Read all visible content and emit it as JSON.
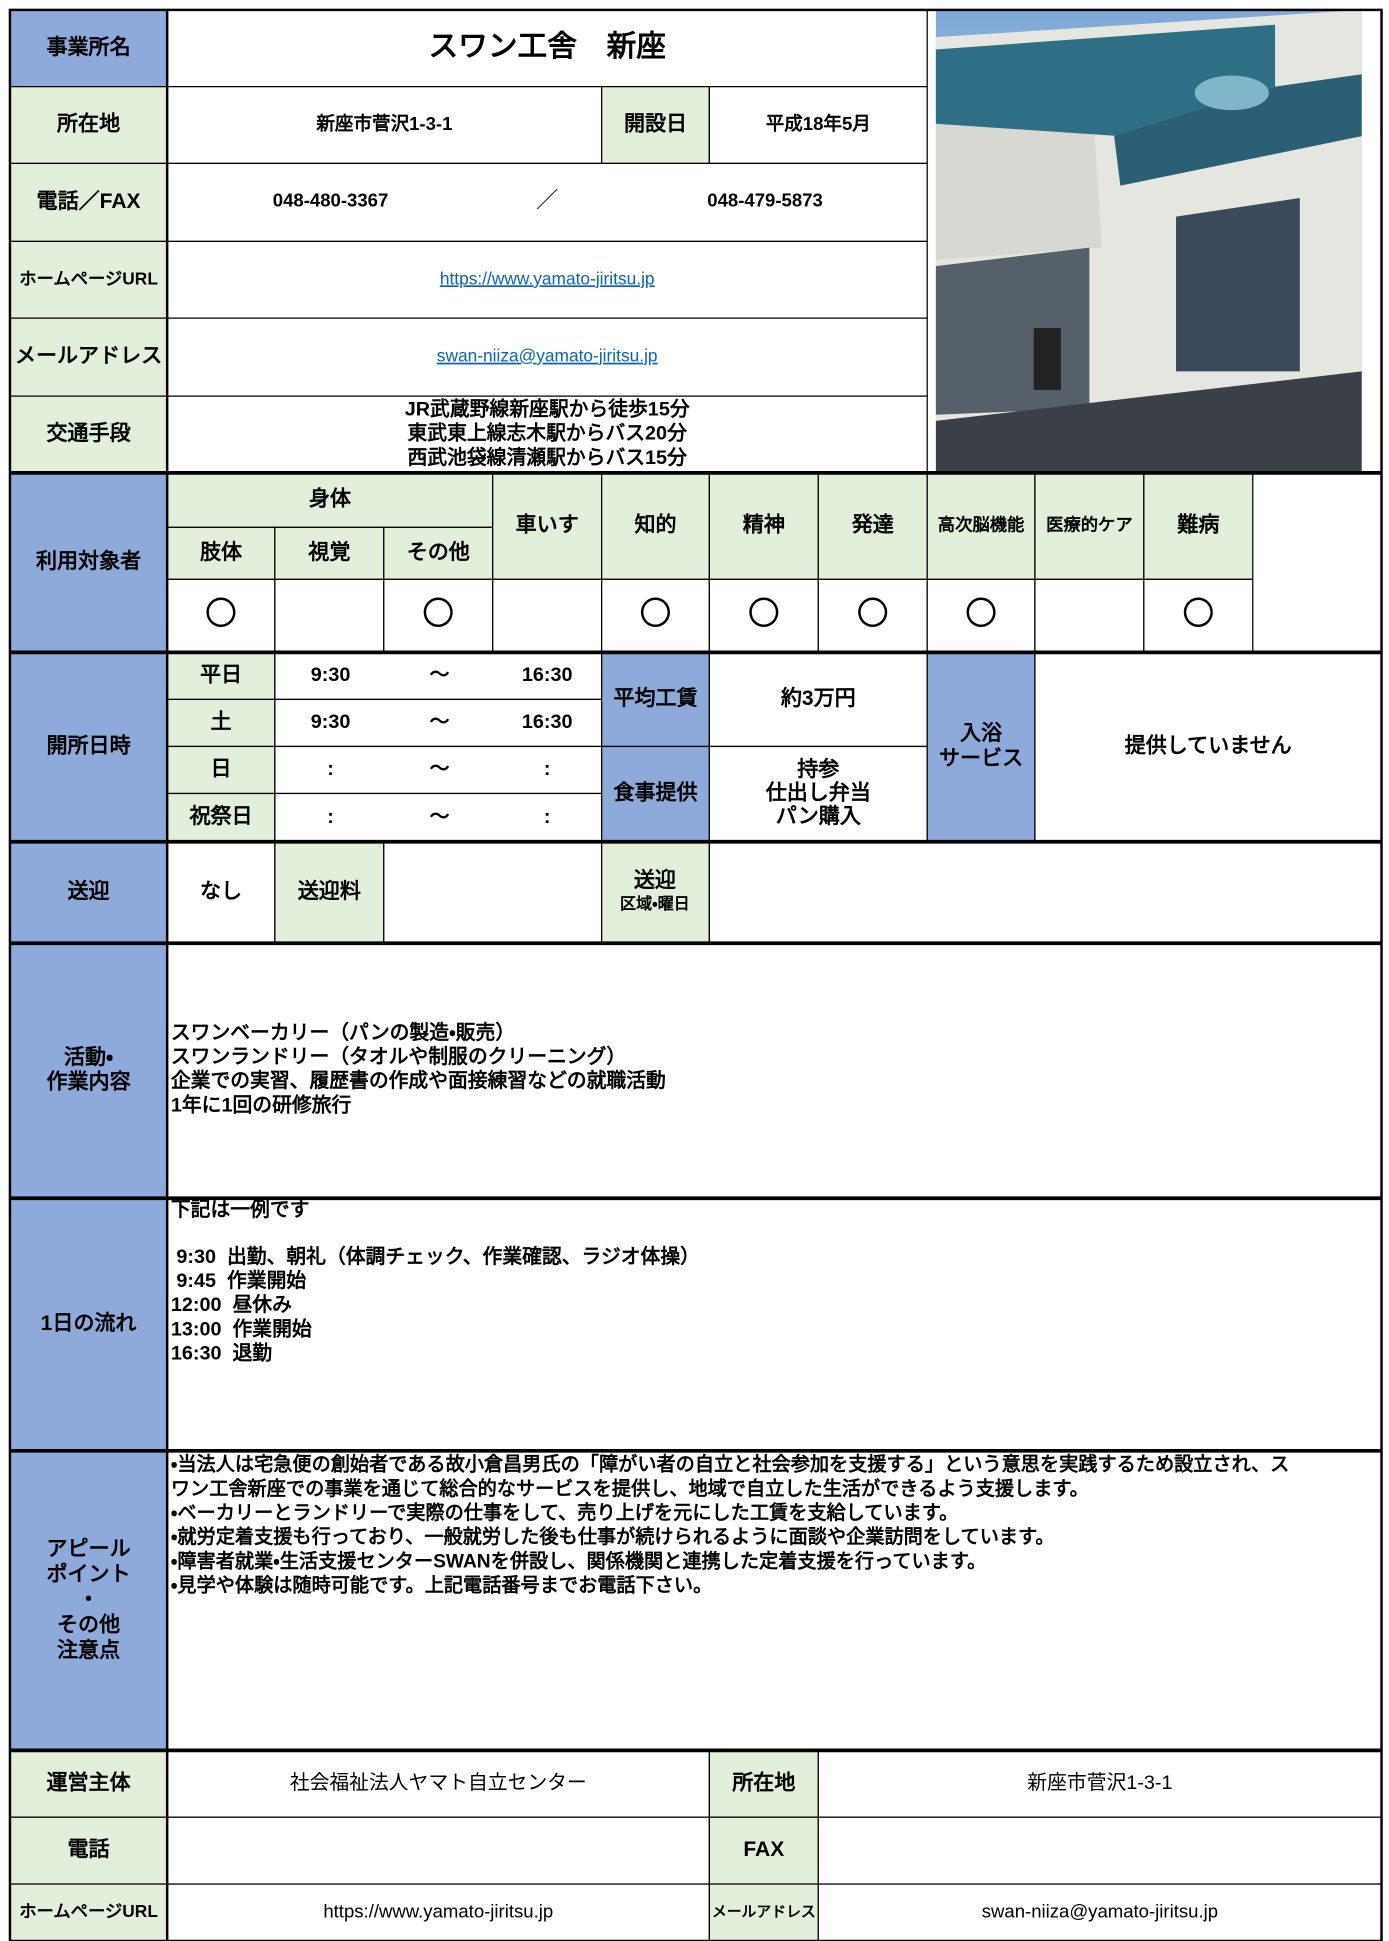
{
  "header": {
    "office_label": "事業所名",
    "office_name": "スワン工舎　新座"
  },
  "info": {
    "address_label": "所在地",
    "address": "新座市菅沢1-3-1",
    "opened_label": "開設日",
    "opened": "平成18年5月",
    "phone_label": "電話／FAX",
    "phone": "048-480-3367",
    "separator": "／",
    "fax": "048-479-5873",
    "url_label": "ホームページURL",
    "url": "https://www.yamato-jiritsu.jp",
    "email_label": "メールアドレス",
    "email": "swan-niiza@yamato-jiritsu.jp",
    "access_label": "交通手段",
    "access": [
      "JR武蔵野線新座駅から徒歩15分",
      "東武東上線志木駅からバス20分",
      "西武池袋線清瀬駅からバス15分"
    ]
  },
  "targets": {
    "label": "利用対象者",
    "body_group": "身体",
    "columns": [
      {
        "name": "肢体",
        "mark": "〇"
      },
      {
        "name": "視覚"
      },
      {
        "name": "その他",
        "mark": "〇"
      },
      {
        "name": "車いす"
      },
      {
        "name": "知的",
        "mark": "〇"
      },
      {
        "name": "精神",
        "mark": "〇"
      },
      {
        "name": "発達",
        "mark": "〇"
      },
      {
        "name": "高次脳機能",
        "mark": "〇"
      },
      {
        "name": "医療的ケア"
      },
      {
        "name": "難病",
        "mark": "〇"
      }
    ]
  },
  "hours": {
    "label": "開所日時",
    "rows": [
      {
        "day": "平日",
        "open": "9:30",
        "tilde": "～",
        "close": "16:30"
      },
      {
        "day": "土",
        "open": "9:30",
        "tilde": "～",
        "close": "16:30"
      },
      {
        "day": "日",
        "open": ":",
        "tilde": "～",
        "close": ":"
      },
      {
        "day": "祝祭日",
        "open": ":",
        "tilde": "～",
        "close": ":"
      }
    ]
  },
  "wage": {
    "label": "平均工賃",
    "value": "約3万円"
  },
  "meals": {
    "label": "食事提供",
    "value": [
      "持参",
      "仕出し弁当",
      "パン購入"
    ]
  },
  "bath": {
    "label": [
      "入浴",
      "サービス"
    ],
    "value": "提供していません"
  },
  "transport": {
    "label": "送迎",
    "value": "なし",
    "fee_label": "送迎料",
    "area_label": [
      "送迎",
      "区域・曜日"
    ]
  },
  "activities": {
    "label": [
      "活動・",
      "作業内容"
    ],
    "lines": [
      "スワンベーカリー（パンの製造・販売）",
      "スワンランドリー（タオルや制服のクリーニング）",
      "企業での実習、履歴書の作成や面接練習などの就職活動",
      "1年に1回の研修旅行"
    ]
  },
  "daily": {
    "label": "1日の流れ",
    "intro": "下記は一例です",
    "lines": [
      " 9:30  出勤、朝礼（体調チェック、作業確認、ラジオ体操）",
      " 9:45  作業開始",
      "12:00  昼休み",
      "13:00  作業開始",
      "16:30  退勤"
    ]
  },
  "appeal": {
    "label": [
      "アピール",
      "ポイント",
      "・",
      "その他",
      "注意点"
    ],
    "lines": [
      "・当法人は宅急便の創始者である故小倉昌男氏の「障がい者の自立と社会参加を支援する」という意思を実践するため設立され、ス",
      "ワン工舎新座での事業を通じて総合的なサービスを提供し、地域で自立した生活ができるよう支援します。",
      "・ベーカリーとランドリーで実際の仕事をして、売り上げを元にした工賃を支給しています。",
      "・就労定着支援も行っており、一般就労した後も仕事が続けられるように面談や企業訪問をしています。",
      "・障害者就業・生活支援センターSWANを併設し、関係機関と連携した定着支援を行っています。",
      "・見学や体験は随時可能です。上記電話番号までお電話下さい。"
    ]
  },
  "operator": {
    "label": "運営主体",
    "name": "社会福祉法人ヤマト自立センター",
    "address_label": "所在地",
    "address": "新座市菅沢1-3-1",
    "phone_label": "電話",
    "fax_label": "FAX",
    "url_label": "ホームページURL",
    "url": "https://www.yamato-jiritsu.jp",
    "email_label": "メールアドレス",
    "email": "swan-niiza@yamato-jiritsu.jp"
  }
}
